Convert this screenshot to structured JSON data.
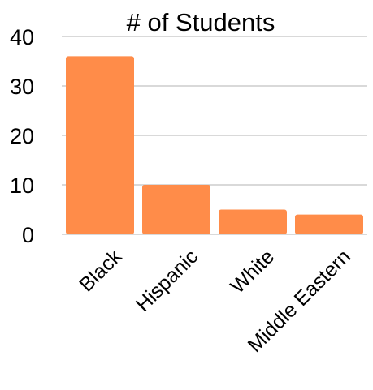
{
  "chart_data": {
    "type": "bar",
    "title": "# of Students",
    "xlabel": "",
    "ylabel": "",
    "categories": [
      "Black",
      "Hispanic",
      "White",
      "Middle Eastern"
    ],
    "values": [
      36,
      10,
      5,
      4
    ],
    "ylim": [
      0,
      40
    ],
    "yticks": [
      0,
      10,
      20,
      30,
      40
    ],
    "grid": true,
    "legend": "none",
    "colors": {
      "bar": "#ff8c49",
      "grid": "#b3b3b3",
      "text": "#000000"
    }
  }
}
